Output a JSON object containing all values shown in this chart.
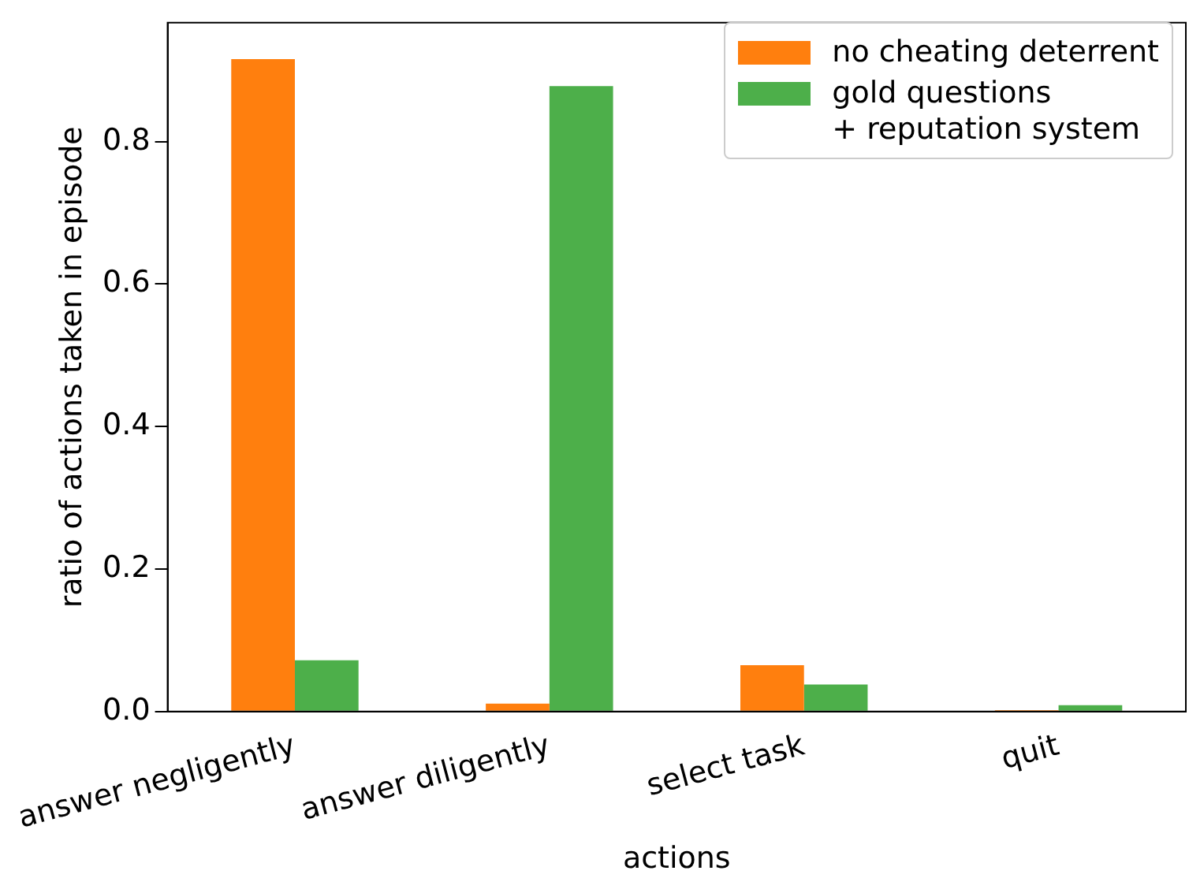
{
  "chart_data": {
    "type": "bar",
    "xlabel": "actions",
    "ylabel": "ratio of actions taken in episode",
    "categories": [
      "answer negligently",
      "answer diligently",
      "select task",
      "quit"
    ],
    "series": [
      {
        "name": "no cheating deterrent",
        "color": "#ff7f0e",
        "values": [
          0.916,
          0.011,
          0.065,
          0.002
        ]
      },
      {
        "name": "gold questions\n+ reputation system",
        "color": "#4daf4a",
        "values": [
          0.072,
          0.878,
          0.038,
          0.009
        ]
      }
    ],
    "ylim": [
      0,
      0.967
    ],
    "yticks": [
      {
        "value": 0,
        "label": "0.0"
      },
      {
        "value": 0.2,
        "label": "0.2"
      },
      {
        "value": 0.4,
        "label": "0.4"
      },
      {
        "value": 0.6,
        "label": "0.6"
      },
      {
        "value": 0.8,
        "label": "0.8"
      }
    ],
    "grid": false,
    "legend": "top right"
  }
}
